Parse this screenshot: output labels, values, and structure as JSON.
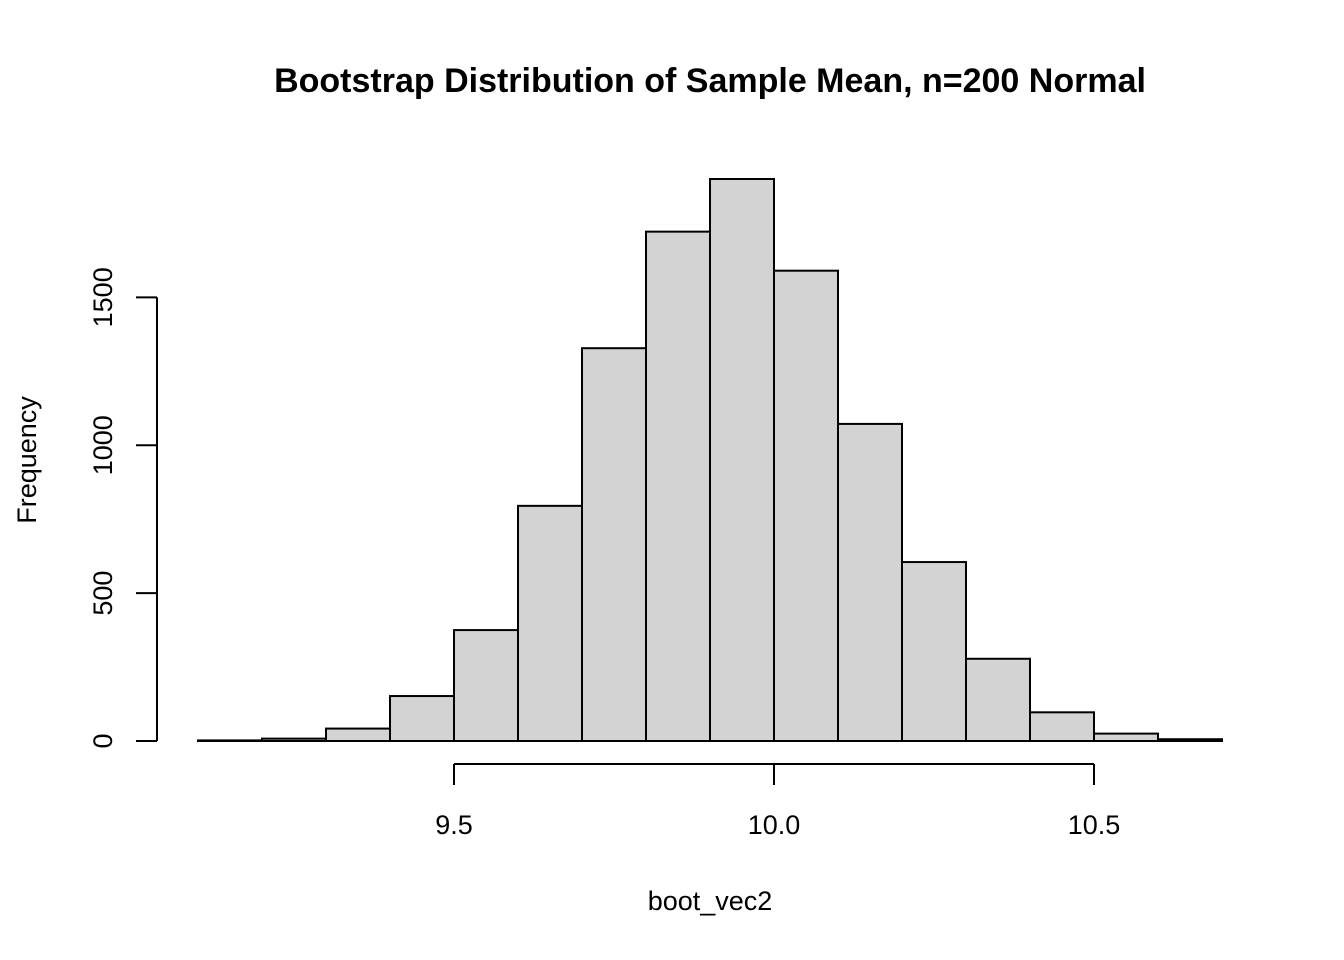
{
  "chart_data": {
    "type": "bar",
    "title": "Bootstrap Distribution of Sample Mean, n=200 Normal",
    "xlabel": "boot_vec2",
    "ylabel": "Frequency",
    "bins": [
      {
        "start": 9.1,
        "end": 9.2,
        "count": 2
      },
      {
        "start": 9.2,
        "end": 9.3,
        "count": 8
      },
      {
        "start": 9.3,
        "end": 9.4,
        "count": 42
      },
      {
        "start": 9.4,
        "end": 9.5,
        "count": 152
      },
      {
        "start": 9.5,
        "end": 9.6,
        "count": 375
      },
      {
        "start": 9.6,
        "end": 9.7,
        "count": 795
      },
      {
        "start": 9.7,
        "end": 9.8,
        "count": 1328
      },
      {
        "start": 9.8,
        "end": 9.9,
        "count": 1722
      },
      {
        "start": 9.9,
        "end": 10.0,
        "count": 1900
      },
      {
        "start": 10.0,
        "end": 10.1,
        "count": 1590
      },
      {
        "start": 10.1,
        "end": 10.2,
        "count": 1072
      },
      {
        "start": 10.2,
        "end": 10.3,
        "count": 605
      },
      {
        "start": 10.3,
        "end": 10.4,
        "count": 278
      },
      {
        "start": 10.4,
        "end": 10.5,
        "count": 97
      },
      {
        "start": 10.5,
        "end": 10.6,
        "count": 25
      },
      {
        "start": 10.6,
        "end": 10.7,
        "count": 6
      }
    ],
    "xlim": [
      9.1,
      10.7
    ],
    "ylim": [
      0,
      1900
    ],
    "x_ticks": [
      {
        "value": 9.5,
        "label": "9.5"
      },
      {
        "value": 10.0,
        "label": "10.0"
      },
      {
        "value": 10.5,
        "label": "10.5"
      }
    ],
    "y_ticks": [
      {
        "value": 0,
        "label": "0"
      },
      {
        "value": 500,
        "label": "500"
      },
      {
        "value": 1000,
        "label": "1000"
      },
      {
        "value": 1500,
        "label": "1500"
      }
    ],
    "bar_fill": "#d3d3d3",
    "bar_edge": "#000000",
    "grid": false,
    "legend": "none"
  }
}
